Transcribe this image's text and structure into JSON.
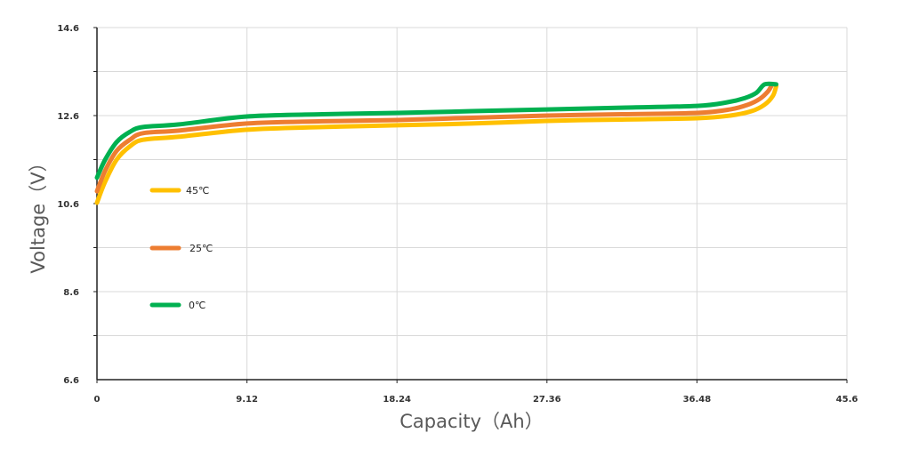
{
  "chart_data": {
    "type": "line",
    "title": "",
    "xlabel": "Capacity（Ah）",
    "ylabel": "Voltage（V）",
    "xlim": [
      0,
      45.6
    ],
    "ylim": [
      6.6,
      14.6
    ],
    "x_ticks": [
      "0",
      "9.12",
      "18.24",
      "27.36",
      "36.48",
      "45.6"
    ],
    "y_ticks": [
      "6.6",
      "8.6",
      "10.6",
      "12.6",
      "14.6"
    ],
    "grid": true,
    "legend_position": "inside-left",
    "series": [
      {
        "name": "45℃",
        "color": "#FFC000",
        "x": [
          0,
          0.5,
          1.2,
          2.0,
          2.8,
          5,
          9.12,
          13.7,
          18.24,
          22.8,
          27.36,
          31.9,
          36.48,
          38.5,
          39.8,
          40.6,
          41.1,
          41.3
        ],
        "y": [
          10.62,
          11.1,
          11.6,
          11.9,
          12.05,
          12.12,
          12.28,
          12.34,
          12.38,
          12.42,
          12.48,
          12.51,
          12.54,
          12.6,
          12.7,
          12.85,
          13.05,
          13.27
        ]
      },
      {
        "name": "25℃",
        "color": "#ED7D31",
        "x": [
          0,
          0.5,
          1.2,
          2.0,
          2.8,
          5,
          9.12,
          13.7,
          18.24,
          22.8,
          27.36,
          31.9,
          36.48,
          38.5,
          39.6,
          40.3,
          40.8,
          41.0
        ],
        "y": [
          10.88,
          11.35,
          11.8,
          12.05,
          12.2,
          12.26,
          12.42,
          12.47,
          12.5,
          12.55,
          12.6,
          12.63,
          12.66,
          12.74,
          12.85,
          12.98,
          13.15,
          13.27
        ]
      },
      {
        "name": "0℃",
        "color": "#00B050",
        "x": [
          0,
          0.5,
          1.2,
          2.0,
          2.8,
          5,
          9.12,
          13.7,
          18.24,
          22.8,
          27.36,
          31.9,
          36.48,
          38.3,
          39.4,
          40.1,
          40.6,
          41.3
        ],
        "y": [
          11.19,
          11.6,
          12.0,
          12.23,
          12.34,
          12.4,
          12.58,
          12.63,
          12.66,
          12.7,
          12.74,
          12.78,
          12.82,
          12.9,
          13.0,
          13.12,
          13.31,
          13.31
        ]
      }
    ]
  },
  "axes": {
    "x_title": "Capacity（Ah）",
    "y_title": "Voltage（V）",
    "x_ticks": [
      "0",
      "9.12",
      "18.24",
      "27.36",
      "36.48",
      "45.6"
    ],
    "y_ticks": [
      "6.6",
      "8.6",
      "10.6",
      "12.6",
      "14.6"
    ]
  },
  "legend": [
    {
      "label": "45℃",
      "color": "#FFC000"
    },
    {
      "label": "25℃",
      "color": "#ED7D31"
    },
    {
      "label": "0℃",
      "color": "#00B050"
    }
  ]
}
